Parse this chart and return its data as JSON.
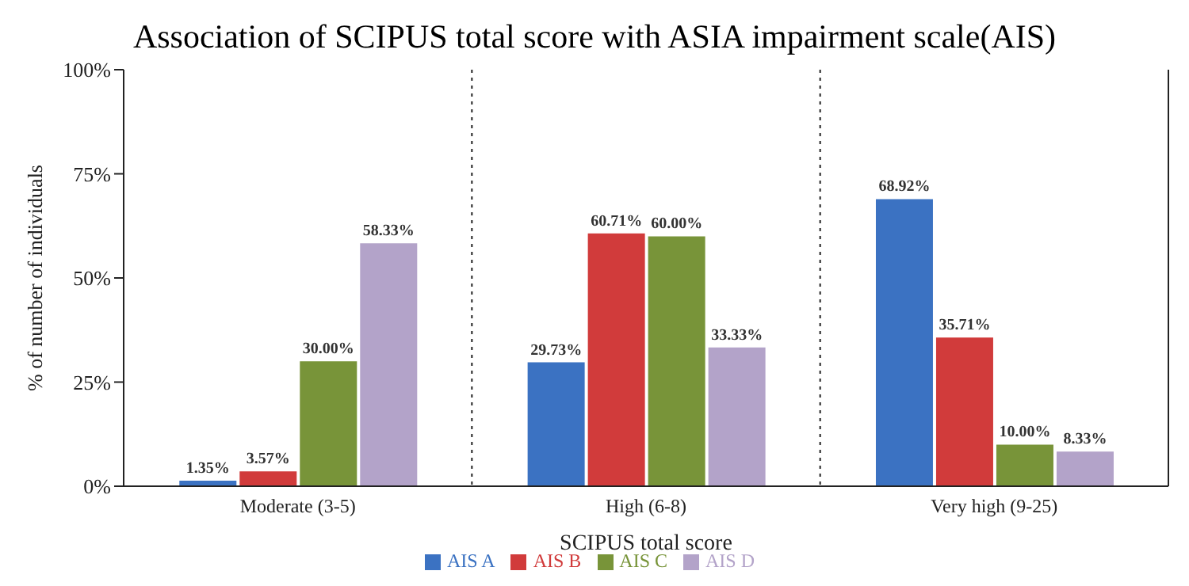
{
  "chart_data": {
    "type": "bar",
    "title": "Association of SCIPUS total score with ASIA impairment scale(AIS)",
    "xlabel": "SCIPUS total score",
    "ylabel": "% of number of individuals",
    "categories": [
      "Moderate (3-5)",
      "High (6-8)",
      "Very high (9-25)"
    ],
    "series": [
      {
        "name": "AIS A",
        "color": "#3b72c2",
        "values": [
          1.35,
          29.73,
          68.92
        ],
        "value_labels": [
          "1.35%",
          "29.73%",
          "68.92%"
        ]
      },
      {
        "name": "AIS B",
        "color": "#d13b3b",
        "values": [
          3.57,
          60.71,
          35.71
        ],
        "value_labels": [
          "3.57%",
          "60.71%",
          "35.71%"
        ]
      },
      {
        "name": "AIS C",
        "color": "#789439",
        "values": [
          30.0,
          60.0,
          10.0
        ],
        "value_labels": [
          "30.00%",
          "60.00%",
          "10.00%"
        ]
      },
      {
        "name": "AIS D",
        "color": "#b3a3c9",
        "values": [
          58.33,
          33.33,
          8.33
        ],
        "value_labels": [
          "58.33%",
          "33.33%",
          "8.33%"
        ]
      }
    ],
    "ylim": [
      0,
      100
    ],
    "yticks": [
      {
        "value": 0,
        "label": "0%"
      },
      {
        "value": 25,
        "label": "25%"
      },
      {
        "value": 50,
        "label": "50%"
      },
      {
        "value": 75,
        "label": "75%"
      },
      {
        "value": 100,
        "label": "100%"
      }
    ],
    "grid": "x",
    "legend": "bottom"
  }
}
